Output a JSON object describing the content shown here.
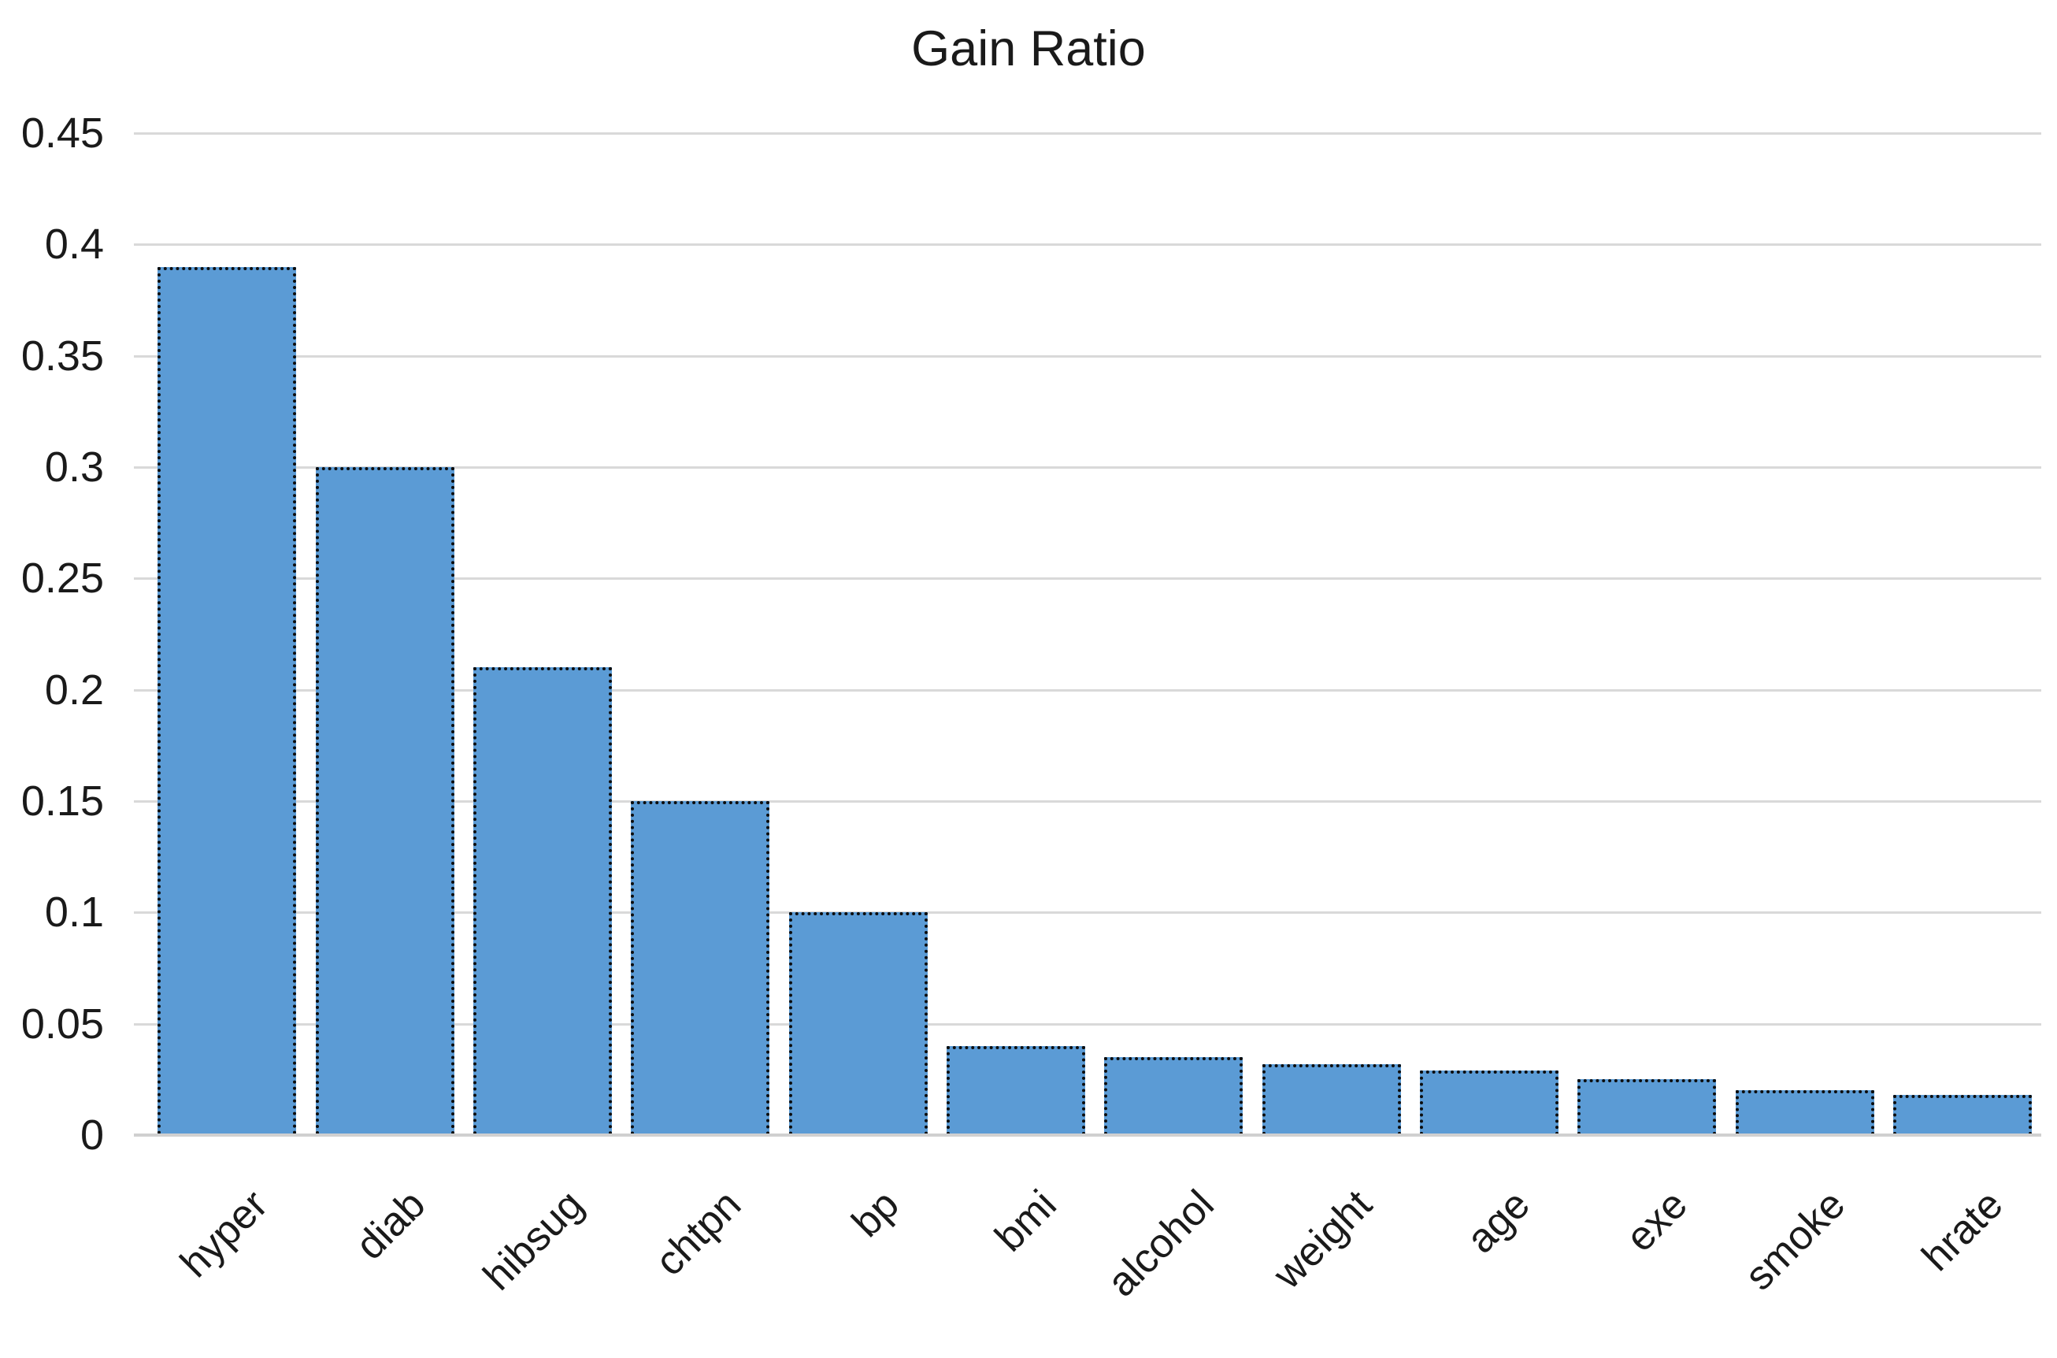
{
  "chart_data": {
    "type": "bar",
    "title": "Gain Ratio",
    "categories": [
      "hyper",
      "diab",
      "hibsug",
      "chtpn",
      "bp",
      "bmi",
      "alcohol",
      "weight",
      "age",
      "exe",
      "smoke",
      "hrate"
    ],
    "values": [
      0.39,
      0.3,
      0.21,
      0.15,
      0.1,
      0.04,
      0.035,
      0.032,
      0.029,
      0.025,
      0.02,
      0.018
    ],
    "xlabel": "",
    "ylabel": "",
    "ylim": [
      0,
      0.45
    ],
    "ytick_values": [
      0.45,
      0.4,
      0.35,
      0.3,
      0.25,
      0.2,
      0.15,
      0.1,
      0.05,
      0
    ],
    "ytick_labels": [
      "0.45",
      "0.4",
      "0.35",
      "0.3",
      "0.25",
      "0.2",
      "0.15",
      "0.1",
      "0.05",
      "0"
    ],
    "grid": "horizontal",
    "legend": "none",
    "x_tick_rotation_deg": -45,
    "colors": {
      "bar_fill": "#5B9BD5",
      "bar_border": "#0D0D0D",
      "gridline": "#D9D9D9",
      "axis_line": "#D0D0D0",
      "text": "#1A1A1A"
    }
  }
}
